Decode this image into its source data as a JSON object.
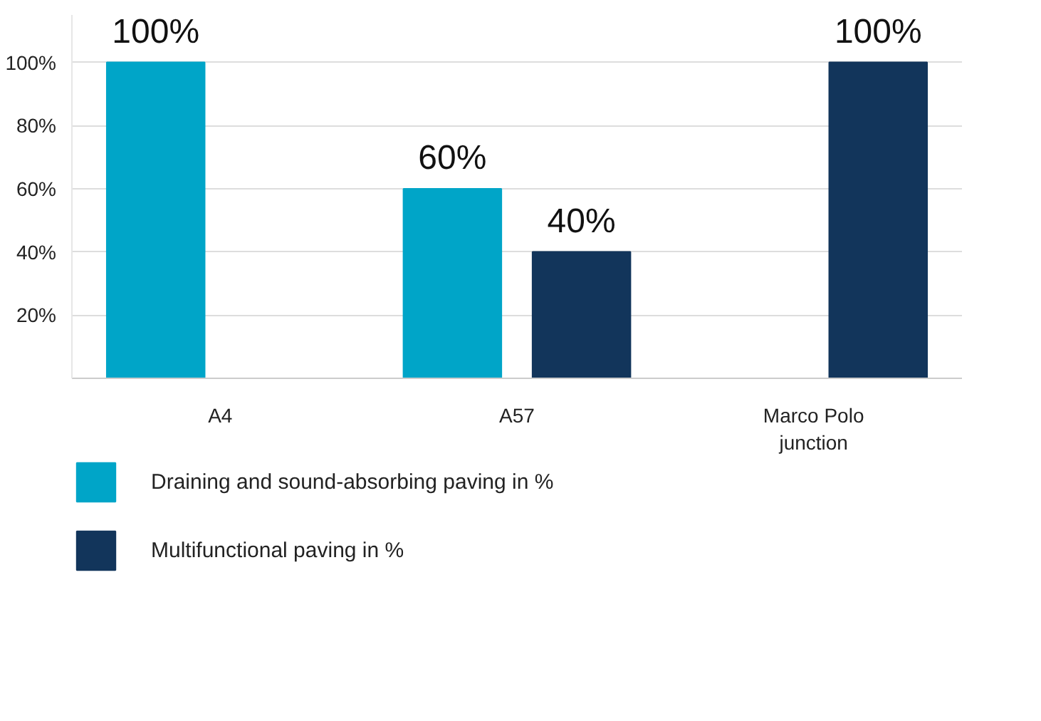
{
  "chart_data": {
    "type": "bar",
    "categories": [
      "A4",
      "A57",
      "Marco Polo\njunction"
    ],
    "series": [
      {
        "name": "Draining and sound-absorbing paving in %",
        "color": "#00a5c8",
        "values": [
          100,
          60,
          0
        ],
        "value_labels": [
          "100%",
          "60%",
          null
        ]
      },
      {
        "name": "Multifunctional paving in %",
        "color": "#12355b",
        "values": [
          0,
          40,
          100
        ],
        "value_labels": [
          null,
          "40%",
          "100%"
        ]
      }
    ],
    "ylim": [
      0,
      115
    ],
    "yticks": [
      {
        "value": 20,
        "label": "20%"
      },
      {
        "value": 40,
        "label": "40%"
      },
      {
        "value": 60,
        "label": "60%"
      },
      {
        "value": 80,
        "label": "80%"
      },
      {
        "value": 100,
        "label": "100%"
      }
    ],
    "grid": "y",
    "legend": "bottom"
  }
}
